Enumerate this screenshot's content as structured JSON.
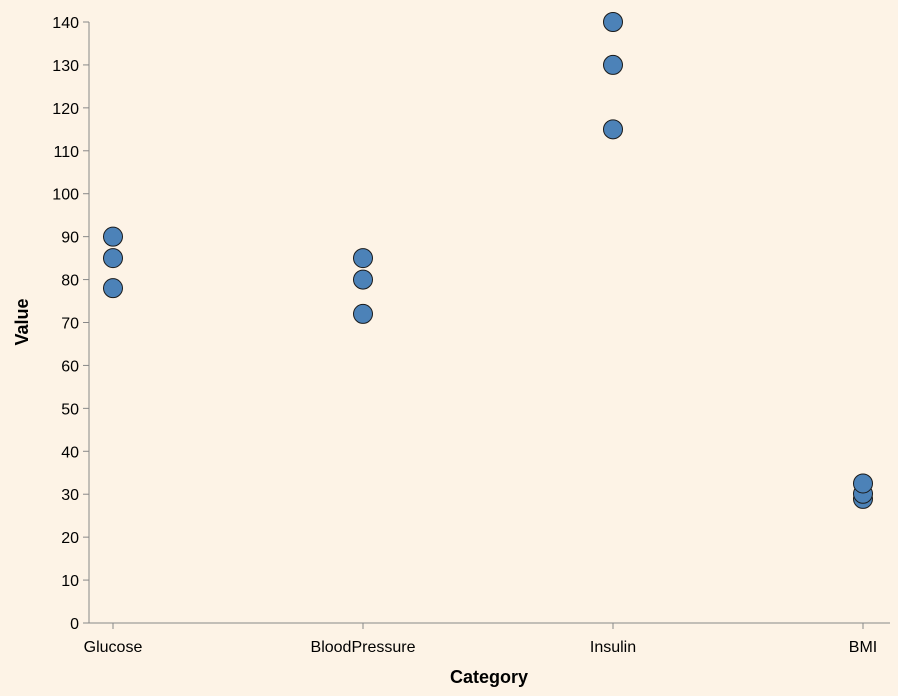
{
  "chart_data": {
    "type": "scatter",
    "title": "",
    "xlabel": "Category",
    "ylabel": "Value",
    "categories": [
      "Glucose",
      "BloodPressure",
      "Insulin",
      "BMI"
    ],
    "ylim": [
      0,
      140
    ],
    "yticks": [
      0,
      10,
      20,
      30,
      40,
      50,
      60,
      70,
      80,
      90,
      100,
      110,
      120,
      130,
      140
    ],
    "grid": false,
    "series": [
      {
        "points": [
          {
            "x": "Glucose",
            "y": 78
          },
          {
            "x": "Glucose",
            "y": 85
          },
          {
            "x": "Glucose",
            "y": 90
          },
          {
            "x": "BloodPressure",
            "y": 72
          },
          {
            "x": "BloodPressure",
            "y": 80
          },
          {
            "x": "BloodPressure",
            "y": 85
          },
          {
            "x": "Insulin",
            "y": 115
          },
          {
            "x": "Insulin",
            "y": 130
          },
          {
            "x": "Insulin",
            "y": 140
          },
          {
            "x": "BMI",
            "y": 28.9
          },
          {
            "x": "BMI",
            "y": 30.1
          },
          {
            "x": "BMI",
            "y": 32.5
          }
        ]
      }
    ],
    "colors": {
      "background": "#fdf3e6",
      "point_fill": "#4c82b8",
      "point_stroke": "#1a1a1a",
      "axis": "#888888"
    }
  }
}
